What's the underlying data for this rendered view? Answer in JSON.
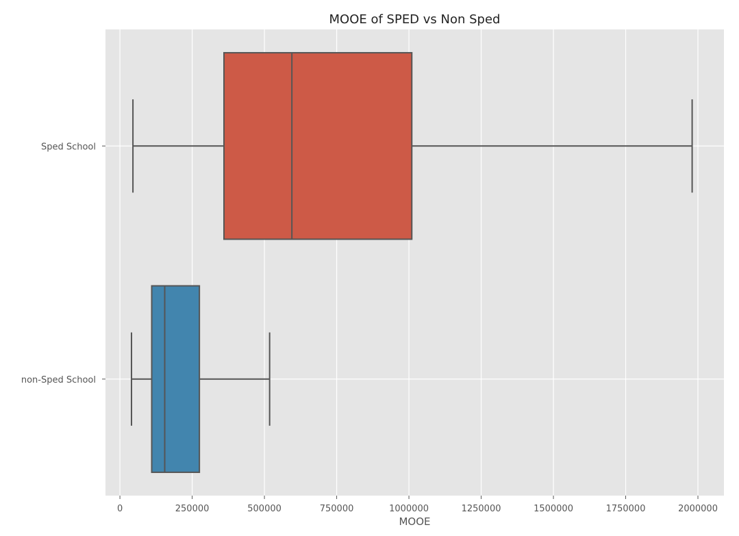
{
  "chart_data": {
    "type": "box",
    "orientation": "horizontal",
    "title": "MOOE of SPED vs Non Sped",
    "xlabel": "MOOE",
    "ylabel": "",
    "xlim": [
      -50000,
      2090000
    ],
    "xticks": [
      0,
      250000,
      500000,
      750000,
      1000000,
      1250000,
      1500000,
      1750000,
      2000000
    ],
    "xtick_labels": [
      "0",
      "250000",
      "500000",
      "750000",
      "1000000",
      "1250000",
      "1500000",
      "1750000",
      "2000000"
    ],
    "grid": true,
    "series": [
      {
        "name": "Sped School",
        "color": "#cd5a47",
        "whisker_low": 45000,
        "q1": 360000,
        "median": 595000,
        "q3": 1010000,
        "whisker_high": 1980000
      },
      {
        "name": "non-Sped School",
        "color": "#4285ae",
        "whisker_low": 40000,
        "q1": 110000,
        "median": 155000,
        "q3": 275000,
        "whisker_high": 518000
      }
    ]
  }
}
